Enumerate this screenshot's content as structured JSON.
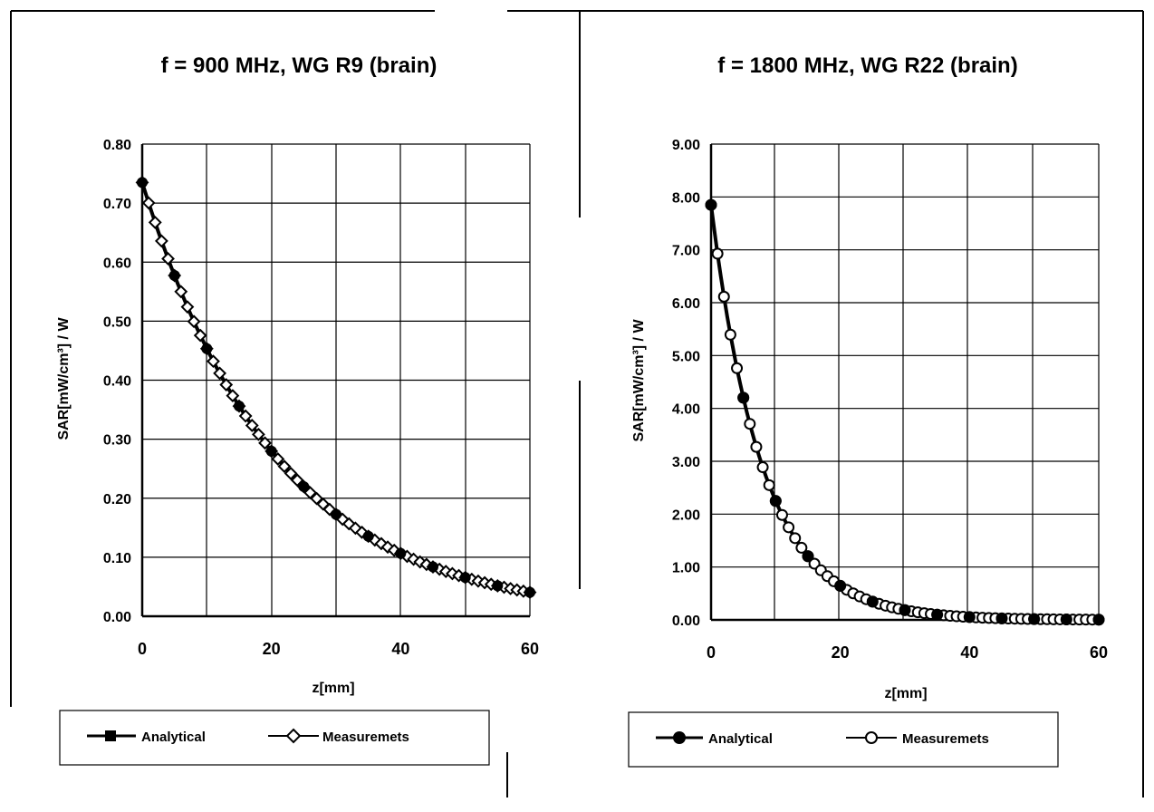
{
  "chart_data": [
    {
      "type": "line",
      "title": "f = 900 MHz, WG R9 (brain)",
      "xlabel": "z[mm]",
      "ylabel": "SAR[mW/cm³] / W",
      "xlim": [
        0,
        60
      ],
      "ylim": [
        0,
        0.8
      ],
      "xticks": [
        "0",
        "20",
        "40",
        "60"
      ],
      "yticks": [
        "0.00",
        "0.10",
        "0.20",
        "0.30",
        "0.40",
        "0.50",
        "0.60",
        "0.70",
        "0.80"
      ],
      "grid": true,
      "legend_position": "bottom",
      "curve": {
        "y0": 0.735,
        "decay_mm": 20.7
      },
      "series": [
        {
          "name": "Analytical",
          "marker": "filled-circle",
          "x": [
            0,
            5,
            10,
            15,
            20,
            25,
            30,
            35,
            40,
            45,
            50,
            55,
            60
          ],
          "values": [
            0.735,
            0.58,
            0.45,
            0.35,
            0.28,
            0.22,
            0.17,
            0.13,
            0.1,
            0.08,
            0.06,
            0.05,
            0.035
          ]
        },
        {
          "name": "Measuremets",
          "marker": "open-diamond",
          "x": [
            0,
            5,
            10,
            15,
            20,
            25,
            30,
            35,
            40,
            45,
            50,
            55,
            60
          ],
          "values": [
            0.735,
            0.58,
            0.45,
            0.35,
            0.28,
            0.22,
            0.17,
            0.13,
            0.1,
            0.08,
            0.06,
            0.05,
            0.035
          ]
        }
      ]
    },
    {
      "type": "line",
      "title": "f = 1800 MHz, WG R22 (brain)",
      "xlabel": "z[mm]",
      "ylabel": "SAR[mW/cm³] / W",
      "xlim": [
        0,
        60
      ],
      "ylim": [
        0,
        9
      ],
      "xticks": [
        "0",
        "20",
        "40",
        "60"
      ],
      "yticks": [
        "0.00",
        "1.00",
        "2.00",
        "3.00",
        "4.00",
        "5.00",
        "6.00",
        "7.00",
        "8.00",
        "9.00"
      ],
      "grid": true,
      "legend_position": "bottom",
      "curve": {
        "y0": 7.85,
        "decay_mm": 8.0
      },
      "series": [
        {
          "name": "Analytical",
          "marker": "filled-circle",
          "x": [
            0,
            5,
            10,
            15,
            20,
            25,
            30,
            35,
            40,
            45,
            50,
            55,
            60
          ],
          "values": [
            7.85,
            4.5,
            2.6,
            1.5,
            0.85,
            0.5,
            0.3,
            0.15,
            0.1,
            0.05,
            0.03,
            0.02,
            0.0
          ]
        },
        {
          "name": "Measuremets",
          "marker": "open-circle",
          "x": [
            0,
            5,
            10,
            15,
            20,
            25,
            30,
            35,
            40,
            45,
            50,
            55,
            60
          ],
          "values": [
            7.85,
            4.5,
            2.6,
            1.5,
            0.85,
            0.5,
            0.3,
            0.15,
            0.1,
            0.05,
            0.03,
            0.02,
            0.0
          ]
        }
      ]
    }
  ]
}
